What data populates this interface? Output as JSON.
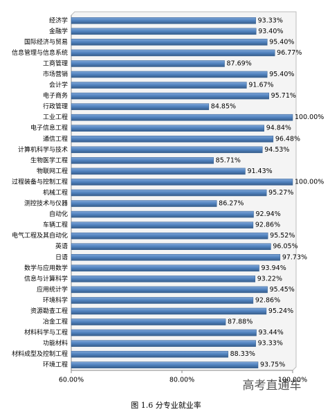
{
  "chart_data": {
    "type": "bar",
    "orientation": "horizontal",
    "title": "图 1.6  分专业就业率",
    "watermark": "高考直通车",
    "categories": [
      "经济学",
      "金融学",
      "国际经济与贸易",
      "信息管理与信息系统",
      "工商管理",
      "市场营销",
      "会计学",
      "电子商务",
      "行政管理",
      "工业工程",
      "电子信息工程",
      "通信工程",
      "计算机科学与技术",
      "生物医学工程",
      "物联网工程",
      "过程装备与控制工程",
      "机械工程",
      "测控技术与仪器",
      "自动化",
      "车辆工程",
      "电气工程及其自动化",
      "英语",
      "日语",
      "数学与应用数学",
      "信息与计算科学",
      "应用统计学",
      "环境科学",
      "资源勘查工程",
      "冶金工程",
      "材料科学与工程",
      "功能材料",
      "材料成型及控制工程",
      "环境工程"
    ],
    "values": [
      93.33,
      93.4,
      95.4,
      96.77,
      87.69,
      95.4,
      91.67,
      95.71,
      84.85,
      100.0,
      94.84,
      96.48,
      94.53,
      85.71,
      91.43,
      100.0,
      95.27,
      86.27,
      92.94,
      92.86,
      95.52,
      96.05,
      97.73,
      93.94,
      93.22,
      95.45,
      92.86,
      95.24,
      87.88,
      93.44,
      93.33,
      88.33,
      93.75
    ],
    "value_labels": [
      "93.33%",
      "93.40%",
      "95.40%",
      "96.77%",
      "87.69%",
      "95.40%",
      "91.67%",
      "95.71%",
      "84.85%",
      "100.00%",
      "94.84%",
      "96.48%",
      "94.53%",
      "85.71%",
      "91.43%",
      "100.00%",
      "95.27%",
      "86.27%",
      "92.94%",
      "92.86%",
      "95.52%",
      "96.05%",
      "97.73%",
      "93.94%",
      "93.22%",
      "95.45%",
      "92.86%",
      "95.24%",
      "87.88%",
      "93.44%",
      "93.33%",
      "88.33%",
      "93.75%"
    ],
    "color": "#4f81bd",
    "xlim": [
      60,
      100
    ],
    "xticks": [
      {
        "value": 60,
        "label": "60.00%"
      },
      {
        "value": 80,
        "label": "80.00%"
      },
      {
        "value": 100,
        "label": "100.00%"
      }
    ]
  }
}
